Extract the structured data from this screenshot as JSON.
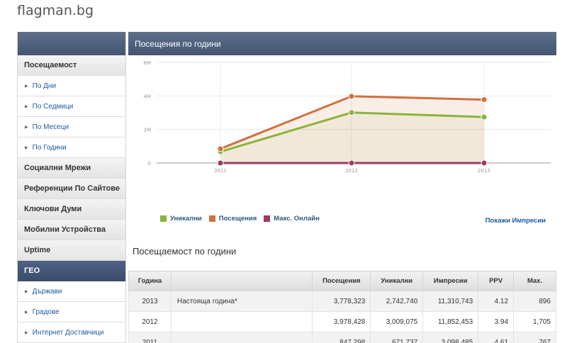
{
  "site": {
    "title": "flagman.bg"
  },
  "sidebar": {
    "items": [
      {
        "label": "Посещаемост",
        "type": "section"
      },
      {
        "label": "По Дни",
        "type": "sub"
      },
      {
        "label": "По Седмици",
        "type": "sub"
      },
      {
        "label": "По Месеци",
        "type": "sub"
      },
      {
        "label": "По Години",
        "type": "sub"
      },
      {
        "label": "Социални Мрежи",
        "type": "section"
      },
      {
        "label": "Референции По Сайтове",
        "type": "section"
      },
      {
        "label": "Ключови Думи",
        "type": "section"
      },
      {
        "label": "Мобилни Устройства",
        "type": "section"
      },
      {
        "label": "Uptime",
        "type": "section"
      },
      {
        "label": "ГЕО",
        "type": "active"
      },
      {
        "label": "Държави",
        "type": "sub"
      },
      {
        "label": "Градове",
        "type": "sub"
      },
      {
        "label": "Интернет Доставчици",
        "type": "sub"
      }
    ]
  },
  "main": {
    "header_title": "Посещения по години",
    "impressions_link": "Покажи Импресии",
    "section_title": "Посещаемост по години"
  },
  "chart_data": {
    "type": "area",
    "categories": [
      "2011",
      "2012",
      "2013"
    ],
    "y_ticks": [
      "0",
      "2M",
      "4M",
      "6M"
    ],
    "ylim": [
      0,
      6000000
    ],
    "grid": true,
    "legend_position": "bottom-left",
    "series": [
      {
        "name": "Уникални",
        "color": "#8ab43a",
        "values": [
          671737,
          3009075,
          2742740
        ]
      },
      {
        "name": "Посещения",
        "color": "#d0703c",
        "values": [
          847298,
          3978428,
          3778323
        ]
      },
      {
        "name": "Макс. Онлайн",
        "color": "#9b3b62",
        "values": [
          767,
          1705,
          896
        ]
      }
    ]
  },
  "table": {
    "headers": [
      "Година",
      "",
      "Посещения",
      "Уникални",
      "Импресии",
      "PPV",
      "Max."
    ],
    "rows": [
      [
        "2013",
        "Настояща година*",
        "3,778,323",
        "2,742,740",
        "11,310,743",
        "4.12",
        "896"
      ],
      [
        "2012",
        "",
        "3,978,428",
        "3,009,075",
        "11,852,453",
        "3.94",
        "1,705"
      ],
      [
        "2011",
        "",
        "847,298",
        "671,737",
        "3,098,485",
        "4.61",
        "767"
      ]
    ]
  }
}
